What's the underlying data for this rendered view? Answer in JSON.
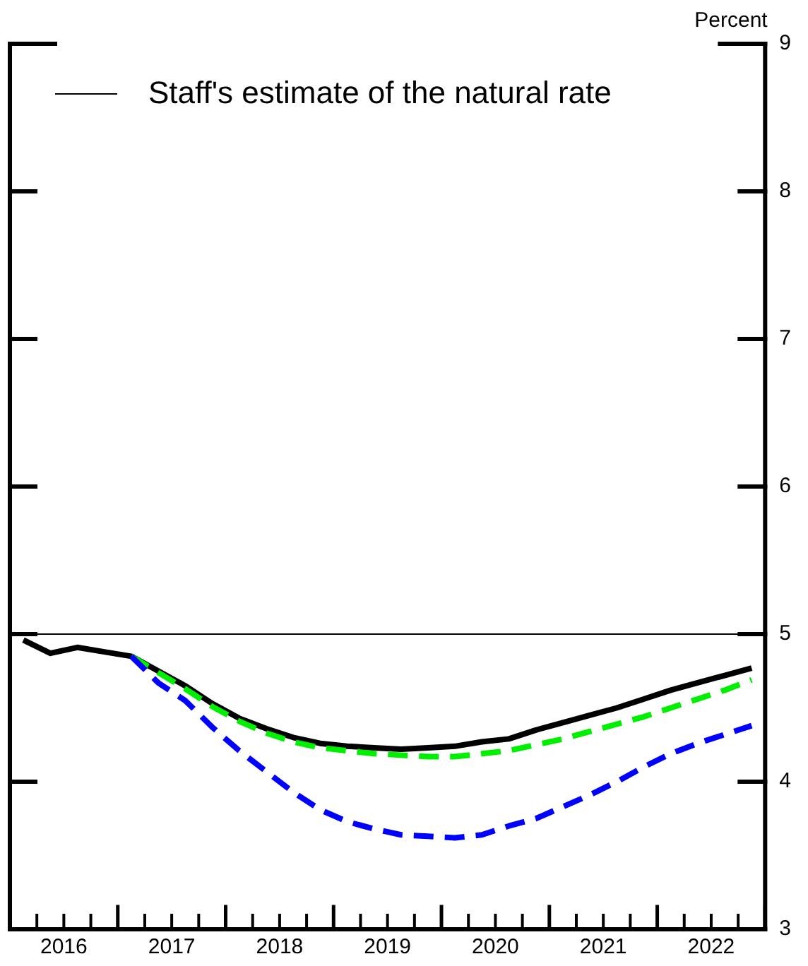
{
  "chart_data": {
    "type": "line",
    "ylabel": "Percent",
    "legend": "top left",
    "grid": false,
    "xlim": [
      2016,
      2023
    ],
    "xticks": [
      {
        "value": 2016,
        "label": null
      },
      {
        "value": 2016.25,
        "label": null
      },
      {
        "value": 2016.5,
        "label": "2016"
      },
      {
        "value": 2016.75,
        "label": null
      },
      {
        "value": 2017,
        "label": null
      },
      {
        "value": 2017.25,
        "label": null
      },
      {
        "value": 2017.5,
        "label": "2017"
      },
      {
        "value": 2017.75,
        "label": null
      },
      {
        "value": 2018,
        "label": null
      },
      {
        "value": 2018.25,
        "label": null
      },
      {
        "value": 2018.5,
        "label": "2018"
      },
      {
        "value": 2018.75,
        "label": null
      },
      {
        "value": 2019,
        "label": null
      },
      {
        "value": 2019.25,
        "label": null
      },
      {
        "value": 2019.5,
        "label": "2019"
      },
      {
        "value": 2019.75,
        "label": null
      },
      {
        "value": 2020,
        "label": null
      },
      {
        "value": 2020.25,
        "label": null
      },
      {
        "value": 2020.5,
        "label": "2020"
      },
      {
        "value": 2020.75,
        "label": null
      },
      {
        "value": 2021,
        "label": null
      },
      {
        "value": 2021.25,
        "label": null
      },
      {
        "value": 2021.5,
        "label": "2021"
      },
      {
        "value": 2021.75,
        "label": null
      },
      {
        "value": 2022,
        "label": null
      },
      {
        "value": 2022.25,
        "label": null
      },
      {
        "value": 2022.5,
        "label": "2022"
      },
      {
        "value": 2022.75,
        "label": null
      },
      {
        "value": 2023,
        "label": null
      }
    ],
    "ylim": [
      3,
      9
    ],
    "yticks": [
      3,
      4,
      5,
      6,
      7,
      8,
      9
    ],
    "x": [
      2016.125,
      2016.375,
      2016.625,
      2016.875,
      2017.125,
      2017.375,
      2017.625,
      2017.875,
      2018.125,
      2018.375,
      2018.625,
      2018.875,
      2019.125,
      2019.375,
      2019.625,
      2019.875,
      2020.125,
      2020.375,
      2020.625,
      2020.875,
      2021.125,
      2021.375,
      2021.625,
      2021.875,
      2022.125,
      2022.375,
      2022.625,
      2022.875
    ],
    "series": [
      {
        "name": "Staff's estimate of the natural rate",
        "color": "#000000",
        "line_style": "solid",
        "x": [
          2016,
          2023
        ],
        "values": [
          5,
          5
        ]
      },
      {
        "color": "#0000ff",
        "line_style": "dashed",
        "x": [
          2017.125,
          2017.375,
          2017.625,
          2017.875,
          2018.125,
          2018.375,
          2018.625,
          2018.875,
          2019.125,
          2019.375,
          2019.625,
          2019.875,
          2020.125,
          2020.375,
          2020.625,
          2020.875,
          2021.125,
          2021.375,
          2021.625,
          2021.875,
          2022.125,
          2022.375,
          2022.625,
          2022.875
        ],
        "values": [
          4.85,
          4.67,
          4.55,
          4.37,
          4.21,
          4.07,
          3.93,
          3.81,
          3.73,
          3.68,
          3.64,
          3.63,
          3.62,
          3.64,
          3.7,
          3.75,
          3.83,
          3.91,
          4.0,
          4.1,
          4.19,
          4.26,
          4.32,
          4.38
        ]
      },
      {
        "color": "#00ee00",
        "line_style": "dashed",
        "x": [
          2017.125,
          2017.375,
          2017.625,
          2017.875,
          2018.125,
          2018.375,
          2018.625,
          2018.875,
          2019.125,
          2019.375,
          2019.625,
          2019.875,
          2020.125,
          2020.375,
          2020.625,
          2020.875,
          2021.125,
          2021.375,
          2021.625,
          2021.875,
          2022.125,
          2022.375,
          2022.625,
          2022.875
        ],
        "values": [
          4.85,
          4.74,
          4.63,
          4.51,
          4.41,
          4.33,
          4.27,
          4.23,
          4.21,
          4.19,
          4.18,
          4.17,
          4.17,
          4.19,
          4.21,
          4.25,
          4.29,
          4.34,
          4.39,
          4.44,
          4.5,
          4.56,
          4.62,
          4.69
        ]
      },
      {
        "color": "#000000",
        "line_style": "solid",
        "values": [
          4.96,
          4.87,
          4.91,
          4.88,
          4.85,
          4.75,
          4.65,
          4.53,
          4.43,
          4.36,
          4.3,
          4.26,
          4.24,
          4.23,
          4.22,
          4.23,
          4.24,
          4.27,
          4.29,
          4.35,
          4.4,
          4.45,
          4.5,
          4.56,
          4.62,
          4.67,
          4.72,
          4.77
        ]
      }
    ]
  }
}
